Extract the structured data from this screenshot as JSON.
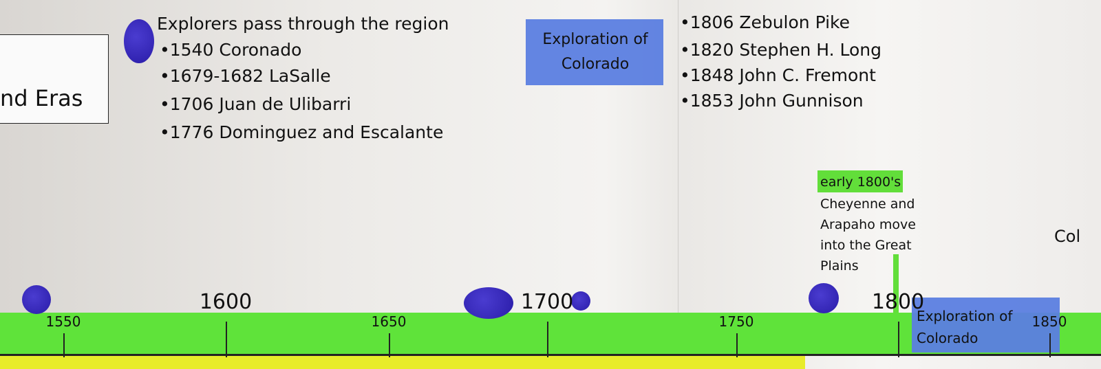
{
  "header": {
    "box_title": "nd Eras"
  },
  "explorers_note": {
    "title": "Explorers pass through the region",
    "items": [
      "•1540 Coronado",
      "•1679-1682 LaSalle",
      "•1706 Juan de Ulibarri",
      "•1776 Dominguez and Escalante"
    ]
  },
  "era_label_top": "Exploration of Colorado",
  "later_explorers": [
    "•1806 Zebulon Pike",
    "•1820 Stephen H. Long",
    "•1848 John C. Fremont",
    "•1853 John Gunnison"
  ],
  "cheyenne_note": {
    "highlight": "early 1800's",
    "text": "Cheyenne and Arapaho move into the Great Plains"
  },
  "cut_off_text": "Col",
  "timeline": {
    "ticks": [
      "1550",
      "1600",
      "1650",
      "1700",
      "1750",
      "1800",
      "1850"
    ],
    "era_label_bottom": "Exploration of Colorado"
  }
}
